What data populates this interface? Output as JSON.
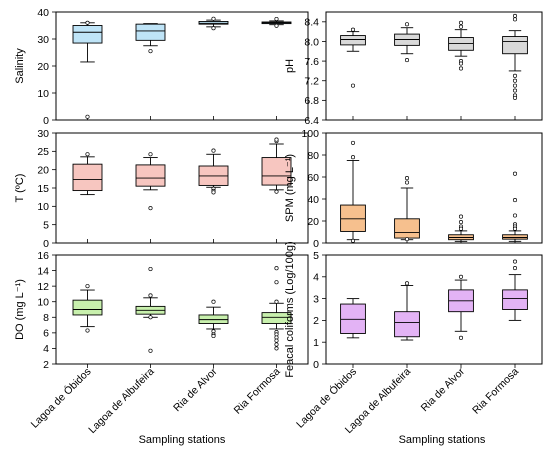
{
  "figure": {
    "xlabel": "Sampling stations",
    "categories": [
      "Lagoa de Óbidos",
      "Lagoa de Albufeira",
      "Ria de Alvor",
      "Ria Formosa"
    ]
  },
  "chart_data": [
    {
      "type": "box",
      "ylabel": "Salinity",
      "ylim": [
        0,
        40
      ],
      "yticks": [
        "0",
        "10",
        "20",
        "30",
        "40"
      ],
      "fill": "#bfe4f7",
      "boxes": [
        {
          "min": 21.5,
          "q1": 28.5,
          "median": 32.5,
          "q3": 35,
          "max": 36,
          "outliers": [
            1.2,
            36
          ]
        },
        {
          "min": 27.5,
          "q1": 29.5,
          "median": 33,
          "q3": 35.5,
          "max": 35.7,
          "outliers": [
            25.5
          ]
        },
        {
          "min": 34.5,
          "q1": 35.5,
          "median": 35.8,
          "q3": 36.5,
          "max": 37,
          "outliers": [
            34,
            37.5
          ]
        },
        {
          "min": 35.3,
          "q1": 35.7,
          "median": 36,
          "q3": 36.3,
          "max": 36.7,
          "outliers": [
            34.9,
            37.4
          ]
        }
      ]
    },
    {
      "type": "box",
      "ylabel": "pH",
      "ylim": [
        6.4,
        8.6
      ],
      "yticks": [
        "6.4",
        "6.8",
        "7.2",
        "7.6",
        "8.0",
        "8.4"
      ],
      "fill": "#d9d9d9",
      "boxes": [
        {
          "min": 7.8,
          "q1": 7.93,
          "median": 8.04,
          "q3": 8.12,
          "max": 8.2,
          "outliers": [
            8.24,
            7.1
          ]
        },
        {
          "min": 7.75,
          "q1": 7.92,
          "median": 8.04,
          "q3": 8.15,
          "max": 8.28,
          "outliers": [
            8.35,
            7.62
          ]
        },
        {
          "min": 7.7,
          "q1": 7.82,
          "median": 7.96,
          "q3": 8.08,
          "max": 8.24,
          "outliers": [
            8.38,
            8.3,
            7.6,
            7.55,
            7.45
          ]
        },
        {
          "min": 7.4,
          "q1": 7.75,
          "median": 8.0,
          "q3": 8.1,
          "max": 8.22,
          "outliers": [
            8.52,
            8.45,
            7.3,
            7.2,
            7.1,
            7.0,
            6.9,
            6.85
          ]
        }
      ]
    },
    {
      "type": "box",
      "ylabel": "T (ºC)",
      "ylim": [
        0,
        30
      ],
      "yticks": [
        "0",
        "5",
        "10",
        "15",
        "20",
        "25",
        "30"
      ],
      "fill": "#f7c6c0",
      "boxes": [
        {
          "min": 13.2,
          "q1": 14.3,
          "median": 17.3,
          "q3": 21.5,
          "max": 23.5,
          "outliers": [
            24.2
          ]
        },
        {
          "min": 14.5,
          "q1": 15.5,
          "median": 17.7,
          "q3": 21.3,
          "max": 23.3,
          "outliers": [
            24.2,
            9.5
          ]
        },
        {
          "min": 15.2,
          "q1": 15.7,
          "median": 18.3,
          "q3": 21,
          "max": 24.2,
          "outliers": [
            25.2,
            14.8,
            14.2,
            13.8
          ]
        },
        {
          "min": 14.5,
          "q1": 15.8,
          "median": 18.3,
          "q3": 23.3,
          "max": 27,
          "outliers": [
            27.8,
            28.2,
            14
          ]
        }
      ]
    },
    {
      "type": "box",
      "ylabel": "SPM (mg L⁻¹)",
      "ylim": [
        0,
        100
      ],
      "yticks": [
        "0",
        "20",
        "40",
        "60",
        "80",
        "100"
      ],
      "fill": "#f6c08e",
      "boxes": [
        {
          "min": 3,
          "q1": 10.5,
          "median": 22,
          "q3": 34.5,
          "max": 75,
          "outliers": [
            91,
            78,
            2
          ]
        },
        {
          "min": 3,
          "q1": 4.5,
          "median": 9.5,
          "q3": 22,
          "max": 50,
          "outliers": [
            59,
            55,
            3.5
          ]
        },
        {
          "min": 1.5,
          "q1": 3,
          "median": 5,
          "q3": 7.5,
          "max": 11,
          "outliers": [
            24,
            19,
            15,
            13
          ]
        },
        {
          "min": 1.5,
          "q1": 3.5,
          "median": 5,
          "q3": 7.5,
          "max": 11,
          "outliers": [
            63,
            39,
            25,
            17,
            15,
            13
          ]
        }
      ]
    },
    {
      "type": "box",
      "ylabel": "DO (mg L⁻¹)",
      "ylim": [
        2,
        16
      ],
      "yticks": [
        "2",
        "4",
        "6",
        "8",
        "10",
        "12",
        "14",
        "16"
      ],
      "fill": "#c8f0ad",
      "boxes": [
        {
          "min": 6.8,
          "q1": 8.3,
          "median": 9,
          "q3": 10.2,
          "max": 11.5,
          "outliers": [
            12,
            6.3
          ]
        },
        {
          "min": 8,
          "q1": 8.4,
          "median": 8.9,
          "q3": 9.4,
          "max": 10.5,
          "outliers": [
            14.2,
            10.8,
            8,
            3.7
          ]
        },
        {
          "min": 6.5,
          "q1": 7.2,
          "median": 7.7,
          "q3": 8.3,
          "max": 9.3,
          "outliers": [
            10,
            6.2,
            5.8,
            5.6
          ]
        },
        {
          "min": 6.5,
          "q1": 7.2,
          "median": 8,
          "q3": 8.6,
          "max": 9.8,
          "outliers": [
            14.3,
            12.5,
            10,
            6.1,
            5.8,
            5.4,
            5,
            4.5,
            4
          ]
        }
      ]
    },
    {
      "type": "box",
      "ylabel": "Feacal coliforms (Log/100g)",
      "ylim": [
        0,
        5
      ],
      "yticks": [
        "0",
        "1",
        "2",
        "3",
        "4",
        "5"
      ],
      "fill": "#e3b3f5",
      "boxes": [
        {
          "min": 1.2,
          "q1": 1.4,
          "median": 2.05,
          "q3": 2.75,
          "max": 3,
          "outliers": []
        },
        {
          "min": 1.1,
          "q1": 1.25,
          "median": 1.9,
          "q3": 2.4,
          "max": 3.6,
          "outliers": [
            3.7
          ]
        },
        {
          "min": 1.5,
          "q1": 2.4,
          "median": 2.9,
          "q3": 3.4,
          "max": 3.85,
          "outliers": [
            4,
            1.2
          ]
        },
        {
          "min": 2,
          "q1": 2.5,
          "median": 3,
          "q3": 3.4,
          "max": 4.1,
          "outliers": [
            4.7,
            4.4
          ]
        }
      ]
    }
  ]
}
